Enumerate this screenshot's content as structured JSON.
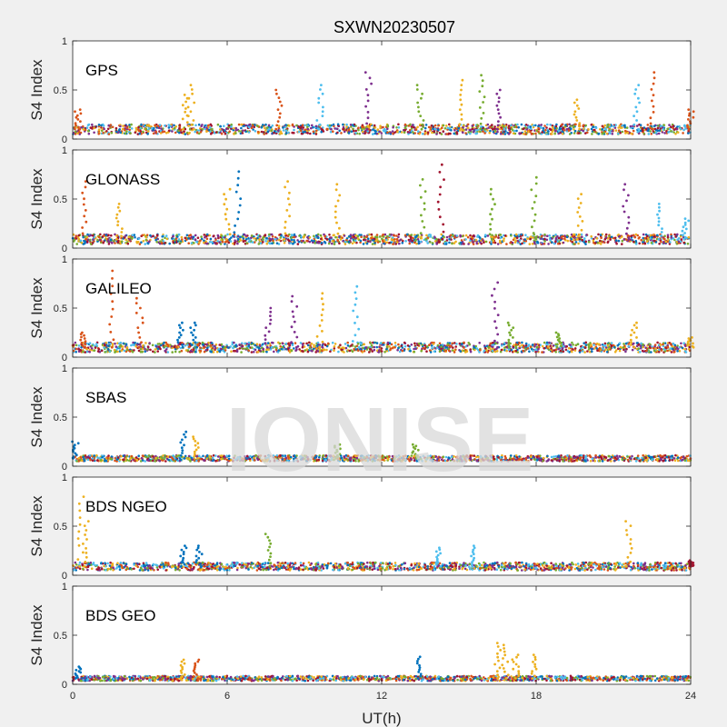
{
  "chart_data": {
    "type": "scatter",
    "title": "SXWN20230507",
    "watermark": "IONISE",
    "xlabel": "UT(h)",
    "ylabel": "S4 Index",
    "xlim": [
      0,
      24
    ],
    "xticks": [
      "0",
      "6",
      "12",
      "18",
      "24"
    ],
    "ylim": [
      0,
      1
    ],
    "yticks": [
      "0",
      "0.5",
      "1"
    ],
    "grid": false,
    "colors": [
      "#0072BD",
      "#D95319",
      "#EDB120",
      "#7E2F8E",
      "#77AC30",
      "#4DBEEE",
      "#A2142F"
    ],
    "panels": [
      {
        "label": "GPS",
        "baseline": 0.1,
        "noise": 0.05,
        "spikes": [
          {
            "x": 0.2,
            "y": 0.3,
            "c": 1
          },
          {
            "x": 4.4,
            "y": 0.45,
            "c": 2
          },
          {
            "x": 4.6,
            "y": 0.55,
            "c": 2
          },
          {
            "x": 8.0,
            "y": 0.5,
            "c": 1
          },
          {
            "x": 9.6,
            "y": 0.55,
            "c": 5
          },
          {
            "x": 11.5,
            "y": 0.68,
            "c": 3
          },
          {
            "x": 13.5,
            "y": 0.55,
            "c": 4
          },
          {
            "x": 15.1,
            "y": 0.6,
            "c": 2
          },
          {
            "x": 15.9,
            "y": 0.65,
            "c": 4
          },
          {
            "x": 16.6,
            "y": 0.5,
            "c": 3
          },
          {
            "x": 19.6,
            "y": 0.4,
            "c": 2
          },
          {
            "x": 21.9,
            "y": 0.55,
            "c": 5
          },
          {
            "x": 22.5,
            "y": 0.68,
            "c": 1
          },
          {
            "x": 24.0,
            "y": 0.3,
            "c": 1
          }
        ]
      },
      {
        "label": "GLONASS",
        "baseline": 0.09,
        "noise": 0.05,
        "spikes": [
          {
            "x": 0.4,
            "y": 0.68,
            "c": 1
          },
          {
            "x": 1.8,
            "y": 0.45,
            "c": 2
          },
          {
            "x": 6.0,
            "y": 0.6,
            "c": 2
          },
          {
            "x": 6.4,
            "y": 0.78,
            "c": 0
          },
          {
            "x": 8.3,
            "y": 0.68,
            "c": 2
          },
          {
            "x": 10.3,
            "y": 0.65,
            "c": 2
          },
          {
            "x": 13.6,
            "y": 0.7,
            "c": 4
          },
          {
            "x": 14.3,
            "y": 0.85,
            "c": 6
          },
          {
            "x": 16.3,
            "y": 0.6,
            "c": 4
          },
          {
            "x": 17.9,
            "y": 0.72,
            "c": 4
          },
          {
            "x": 19.7,
            "y": 0.55,
            "c": 2
          },
          {
            "x": 21.5,
            "y": 0.65,
            "c": 3
          },
          {
            "x": 22.8,
            "y": 0.45,
            "c": 5
          },
          {
            "x": 23.8,
            "y": 0.3,
            "c": 5
          }
        ]
      },
      {
        "label": "GALILEO",
        "baseline": 0.1,
        "noise": 0.05,
        "spikes": [
          {
            "x": 0.4,
            "y": 0.25,
            "c": 1
          },
          {
            "x": 1.5,
            "y": 0.88,
            "c": 1
          },
          {
            "x": 2.6,
            "y": 0.6,
            "c": 1
          },
          {
            "x": 4.2,
            "y": 0.35,
            "c": 0
          },
          {
            "x": 4.7,
            "y": 0.35,
            "c": 0
          },
          {
            "x": 7.6,
            "y": 0.5,
            "c": 3
          },
          {
            "x": 8.6,
            "y": 0.62,
            "c": 3
          },
          {
            "x": 9.6,
            "y": 0.65,
            "c": 2
          },
          {
            "x": 11.0,
            "y": 0.72,
            "c": 5
          },
          {
            "x": 16.4,
            "y": 0.76,
            "c": 3
          },
          {
            "x": 17.0,
            "y": 0.35,
            "c": 4
          },
          {
            "x": 18.9,
            "y": 0.25,
            "c": 4
          },
          {
            "x": 21.8,
            "y": 0.35,
            "c": 2
          },
          {
            "x": 24.0,
            "y": 0.2,
            "c": 2
          }
        ]
      },
      {
        "label": "SBAS",
        "baseline": 0.08,
        "noise": 0.03,
        "spikes": [
          {
            "x": 0.1,
            "y": 0.25,
            "c": 0
          },
          {
            "x": 4.3,
            "y": 0.35,
            "c": 0
          },
          {
            "x": 4.8,
            "y": 0.3,
            "c": 2
          },
          {
            "x": 10.3,
            "y": 0.22,
            "c": 4
          },
          {
            "x": 13.3,
            "y": 0.22,
            "c": 4
          }
        ]
      },
      {
        "label": "BDS NGEO",
        "baseline": 0.09,
        "noise": 0.04,
        "spikes": [
          {
            "x": 0.3,
            "y": 0.8,
            "c": 2
          },
          {
            "x": 0.5,
            "y": 0.55,
            "c": 2
          },
          {
            "x": 4.3,
            "y": 0.3,
            "c": 0
          },
          {
            "x": 4.9,
            "y": 0.3,
            "c": 0
          },
          {
            "x": 7.6,
            "y": 0.42,
            "c": 4
          },
          {
            "x": 14.2,
            "y": 0.28,
            "c": 5
          },
          {
            "x": 15.6,
            "y": 0.3,
            "c": 5
          },
          {
            "x": 21.6,
            "y": 0.55,
            "c": 2
          },
          {
            "x": 24.0,
            "y": 0.15,
            "c": 6
          }
        ]
      },
      {
        "label": "BDS GEO",
        "baseline": 0.06,
        "noise": 0.025,
        "spikes": [
          {
            "x": 0.2,
            "y": 0.18,
            "c": 0
          },
          {
            "x": 4.3,
            "y": 0.25,
            "c": 2
          },
          {
            "x": 4.8,
            "y": 0.25,
            "c": 1
          },
          {
            "x": 13.5,
            "y": 0.28,
            "c": 0
          },
          {
            "x": 16.5,
            "y": 0.42,
            "c": 2
          },
          {
            "x": 16.8,
            "y": 0.4,
            "c": 2
          },
          {
            "x": 17.2,
            "y": 0.3,
            "c": 2
          },
          {
            "x": 17.9,
            "y": 0.3,
            "c": 2
          }
        ]
      }
    ]
  }
}
